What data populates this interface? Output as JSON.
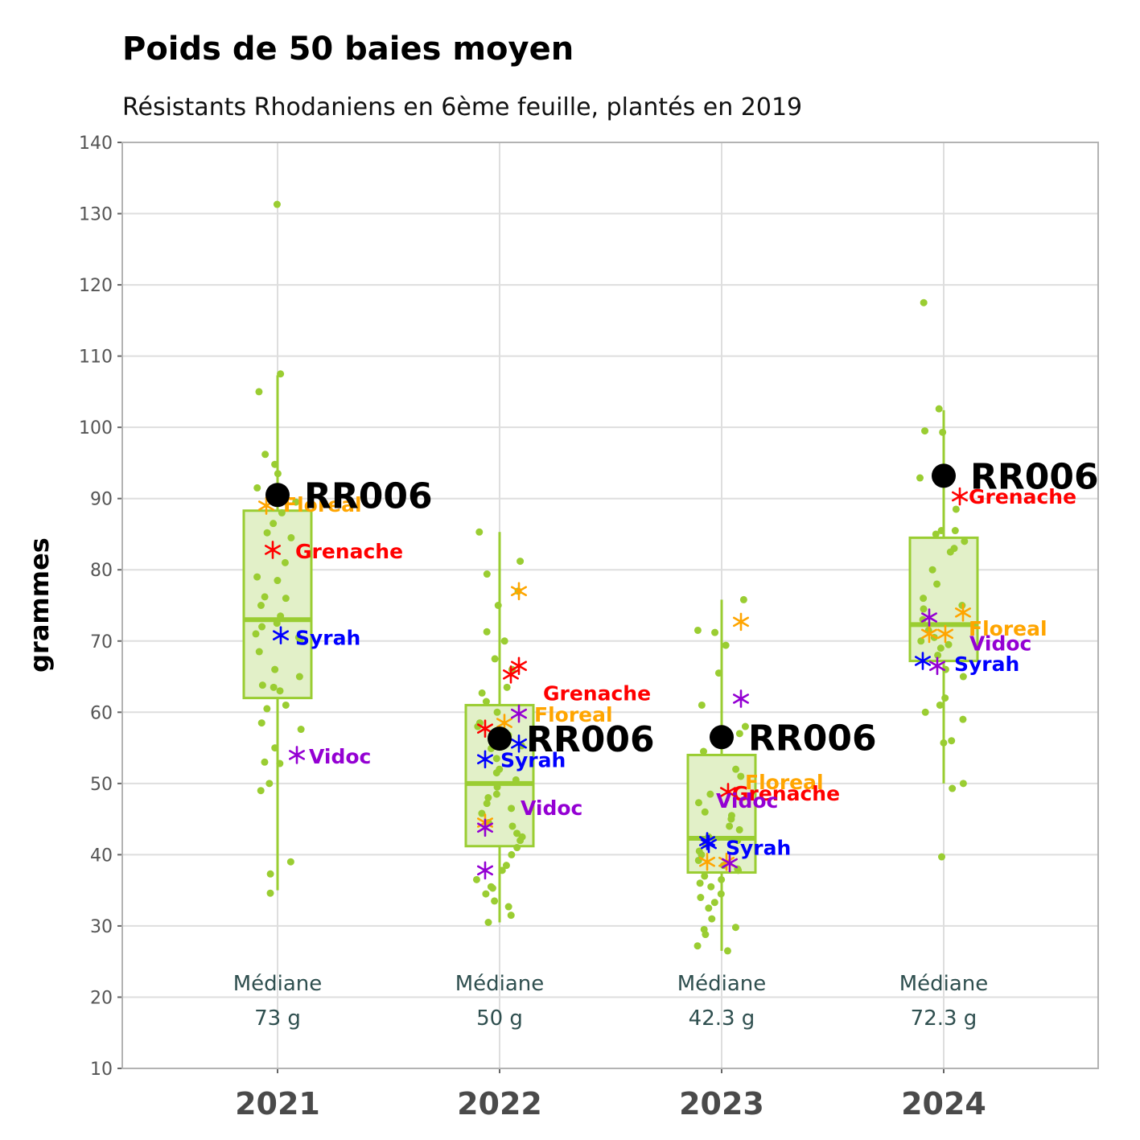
{
  "chart_data": {
    "type": "boxplot",
    "title": "Poids de 50 baies moyen",
    "subtitle": "Résistants Rhodaniens en 6ème feuille, plantés en 2019",
    "ylabel": "grammes",
    "xlabel": "",
    "ylim": [
      10,
      140
    ],
    "yticks": [
      10,
      20,
      30,
      40,
      50,
      60,
      70,
      80,
      90,
      100,
      110,
      120,
      130,
      140
    ],
    "grid": true,
    "categories": [
      "2021",
      "2022",
      "2023",
      "2024"
    ],
    "colors": {
      "box_fill": "#e2f0c8",
      "box_line": "#9acd32",
      "points": "#9acd32",
      "highlight": "#000000",
      "Floreal": "#ffa500",
      "Grenache": "#ff0000",
      "Syrah": "#0000ff",
      "Vidoc": "#9400d3",
      "median_text": "#2f4f4f"
    },
    "boxes": [
      {
        "category": "2021",
        "whisker_low": 35,
        "q1": 62,
        "median": 73,
        "q3": 88.3,
        "whisker_high": 107.3
      },
      {
        "category": "2022",
        "whisker_low": 30.5,
        "q1": 41.2,
        "median": 50,
        "q3": 61,
        "whisker_high": 85.3
      },
      {
        "category": "2023",
        "whisker_low": 26.5,
        "q1": 37.5,
        "median": 42.3,
        "q3": 54,
        "whisker_high": 75.8
      },
      {
        "category": "2024",
        "whisker_low": 50,
        "q1": 67.2,
        "median": 72.3,
        "q3": 84.5,
        "whisker_high": 102.4
      }
    ],
    "points": [
      {
        "category": "2021",
        "values": [
          131.3,
          107.5,
          105,
          96.2,
          94.8,
          93.5,
          91.5,
          89.5,
          88,
          86.5,
          85.2,
          84.5,
          81,
          79,
          78.5,
          76.2,
          76,
          75,
          73.5,
          72.5,
          72,
          71,
          70.5,
          70,
          68.5,
          66,
          65,
          63.8,
          63.5,
          63,
          61,
          60.5,
          58.5,
          57.6,
          55,
          53,
          52.8,
          50,
          49,
          39,
          37.3,
          34.6
        ]
      },
      {
        "category": "2022",
        "values": [
          85.3,
          81.2,
          79.4,
          77,
          75,
          71.3,
          70,
          67.5,
          66,
          63.5,
          62.7,
          61.5,
          60,
          58.5,
          58,
          57.2,
          56.8,
          56,
          55.3,
          54.9,
          53.5,
          52,
          51.5,
          50.5,
          49.5,
          48.5,
          48,
          47.2,
          46.5,
          45.8,
          44.5,
          44,
          43,
          42.5,
          42,
          41,
          40,
          38.5,
          37.8,
          36.5,
          35.5,
          35.3,
          34.5,
          33.5,
          32.7,
          31.5,
          30.5
        ]
      },
      {
        "category": "2023",
        "values": [
          75.8,
          71.5,
          71.2,
          69.4,
          65.5,
          61,
          58,
          57.3,
          57,
          56,
          55.5,
          54.5,
          52,
          51,
          48.5,
          47.3,
          46,
          45.5,
          45,
          44,
          43.5,
          42.5,
          42,
          41.5,
          40.5,
          40,
          39.2,
          38.5,
          38,
          37.8,
          37,
          36.5,
          36,
          35.5,
          34.5,
          34,
          33.3,
          32.5,
          31,
          29.8,
          29.5,
          28.8,
          27.2,
          26.5
        ]
      },
      {
        "category": "2024",
        "values": [
          117.5,
          102.6,
          99.5,
          99.3,
          93.4,
          92.9,
          88.5,
          85.5,
          85.5,
          85,
          84,
          83,
          82.5,
          80,
          78,
          76,
          75,
          74.5,
          73,
          71.5,
          70.5,
          70,
          69.5,
          69,
          68,
          66,
          65,
          62,
          61,
          60,
          59,
          56,
          55.7,
          50,
          49.3,
          39.7
        ]
      }
    ],
    "highlight": {
      "name": "RR006",
      "values": [
        {
          "category": "2021",
          "value": 90.5
        },
        {
          "category": "2022",
          "value": 56.3
        },
        {
          "category": "2023",
          "value": 56.5
        },
        {
          "category": "2024",
          "value": 93.2
        }
      ]
    },
    "series": [
      {
        "name": "Floreal",
        "values": [
          89,
          58.5,
          39,
          71
        ],
        "extra": [
          {
            "category": "2022",
            "value": 77
          },
          {
            "category": "2022",
            "value": 44.5
          },
          {
            "category": "2023",
            "value": 72.7
          },
          {
            "category": "2023",
            "value": 39
          },
          {
            "category": "2024",
            "value": 74
          },
          {
            "category": "2024",
            "value": 71
          }
        ],
        "label_values": [
          89.2,
          59.7,
          50.2,
          71.8
        ]
      },
      {
        "name": "Grenache",
        "values": [
          82.8,
          65.3,
          48.8,
          90.3
        ],
        "extra": [
          {
            "category": "2022",
            "value": 66.5
          },
          {
            "category": "2022",
            "value": 57.7
          }
        ],
        "label_values": [
          82.6,
          62.7,
          48.6,
          90.3
        ]
      },
      {
        "name": "Syrah",
        "values": [
          70.8,
          53.4,
          41.5,
          67.2
        ],
        "extra": [
          {
            "category": "2022",
            "value": 55.6
          },
          {
            "category": "2023",
            "value": 41.9
          }
        ],
        "label_values": [
          70.5,
          53.3,
          41,
          66.8
        ]
      },
      {
        "name": "Vidoc",
        "values": [
          54,
          43.8,
          38.8,
          66.5
        ],
        "extra": [
          {
            "category": "2022",
            "value": 59.8
          },
          {
            "category": "2022",
            "value": 37.8
          },
          {
            "category": "2023",
            "value": 61.9
          },
          {
            "category": "2024",
            "value": 73.3
          }
        ],
        "label_values": [
          53.8,
          46.6,
          47.6,
          69.7
        ]
      }
    ],
    "medians_text": [
      {
        "category": "2021",
        "label": "Médiane",
        "value": "73 g"
      },
      {
        "category": "2022",
        "label": "Médiane",
        "value": "50 g"
      },
      {
        "category": "2023",
        "label": "Médiane",
        "value": "42.3 g"
      },
      {
        "category": "2024",
        "label": "Médiane",
        "value": "72.3 g"
      }
    ]
  }
}
